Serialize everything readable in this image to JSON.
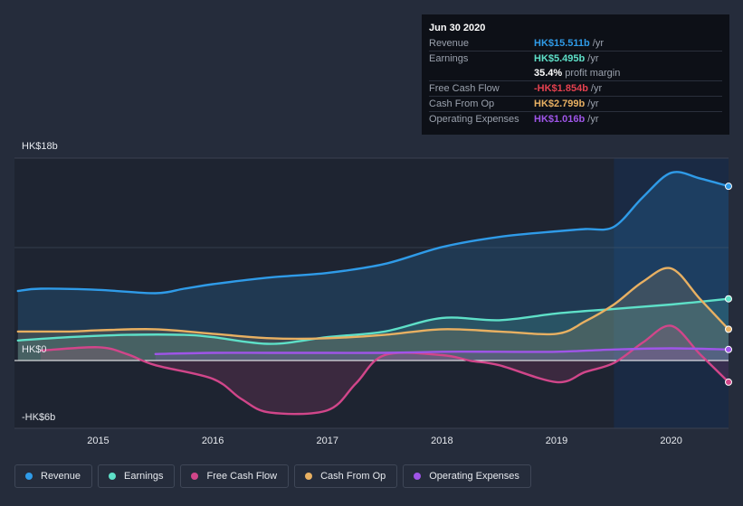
{
  "chart_data": {
    "type": "area",
    "title": "",
    "ylim": [
      -6,
      18
    ],
    "y_tick_labels": {
      "top": "HK$18b",
      "zero": "HK$0",
      "bottom": "-HK$6b"
    },
    "x_ticks": [
      {
        "value": 2015,
        "label": "2015"
      },
      {
        "value": 2016,
        "label": "2016"
      },
      {
        "value": 2017,
        "label": "2017"
      },
      {
        "value": 2018,
        "label": "2018"
      },
      {
        "value": 2019,
        "label": "2019"
      },
      {
        "value": 2020,
        "label": "2020"
      }
    ],
    "xlim": [
      2014.27,
      2020.5
    ],
    "forecast_start": 2019.5,
    "series": [
      {
        "name": "Revenue",
        "color": "#2f9be8",
        "x": [
          2014.3,
          2014.5,
          2015.0,
          2015.5,
          2015.75,
          2016.0,
          2016.5,
          2017.0,
          2017.5,
          2018.0,
          2018.5,
          2019.0,
          2019.25,
          2019.5,
          2019.75,
          2020.0,
          2020.25,
          2020.5
        ],
        "values": [
          6.2,
          6.4,
          6.3,
          6.0,
          6.4,
          6.8,
          7.4,
          7.8,
          8.6,
          10.1,
          11.0,
          11.5,
          11.7,
          11.9,
          14.5,
          16.7,
          16.2,
          15.5
        ]
      },
      {
        "name": "Earnings",
        "color": "#5ee0c8",
        "x": [
          2014.3,
          2014.75,
          2015.25,
          2015.75,
          2016.0,
          2016.5,
          2017.0,
          2017.5,
          2018.0,
          2018.5,
          2019.0,
          2019.5,
          2020.0,
          2020.5
        ],
        "values": [
          1.8,
          2.1,
          2.3,
          2.3,
          2.1,
          1.5,
          2.1,
          2.6,
          3.8,
          3.6,
          4.2,
          4.6,
          5.0,
          5.5
        ]
      },
      {
        "name": "Free Cash Flow",
        "color": "#d1468a",
        "x": [
          2014.5,
          2015.0,
          2015.25,
          2015.5,
          2016.0,
          2016.25,
          2016.5,
          2017.0,
          2017.25,
          2017.5,
          2018.0,
          2018.25,
          2018.5,
          2019.0,
          2019.25,
          2019.5,
          2019.75,
          2020.0,
          2020.25,
          2020.5
        ],
        "values": [
          0.9,
          1.2,
          0.6,
          -0.4,
          -1.6,
          -3.4,
          -4.6,
          -4.4,
          -2.0,
          0.5,
          0.5,
          0.0,
          -0.4,
          -1.9,
          -1.0,
          -0.2,
          1.6,
          3.1,
          0.6,
          -1.9
        ]
      },
      {
        "name": "Cash From Op",
        "color": "#e8b062",
        "x": [
          2014.3,
          2014.75,
          2015.0,
          2015.5,
          2016.0,
          2016.5,
          2017.0,
          2017.5,
          2018.0,
          2018.5,
          2019.0,
          2019.25,
          2019.5,
          2019.75,
          2020.0,
          2020.25,
          2020.5
        ],
        "values": [
          2.6,
          2.6,
          2.7,
          2.8,
          2.4,
          2.0,
          2.0,
          2.3,
          2.8,
          2.6,
          2.4,
          3.5,
          5.0,
          7.0,
          8.2,
          5.5,
          2.8
        ]
      },
      {
        "name": "Operating Expenses",
        "color": "#9f55e8",
        "x": [
          2015.5,
          2016.0,
          2016.5,
          2017.0,
          2017.5,
          2018.0,
          2018.5,
          2019.0,
          2019.5,
          2020.0,
          2020.5
        ],
        "values": [
          0.6,
          0.7,
          0.7,
          0.7,
          0.7,
          0.8,
          0.8,
          0.8,
          1.0,
          1.1,
          1.0
        ]
      }
    ]
  },
  "tooltip": {
    "date": "Jun 30 2020",
    "rows": [
      {
        "label": "Revenue",
        "value": "HK$15.511b",
        "unit": "/yr",
        "color": "#2f9be8"
      },
      {
        "label": "Earnings",
        "value": "HK$5.495b",
        "unit": "/yr",
        "color": "#5ee0c8"
      },
      {
        "label": "",
        "value": "35.4%",
        "unit": "profit margin",
        "color": "#ffffff"
      },
      {
        "label": "Free Cash Flow",
        "value": "-HK$1.854b",
        "unit": "/yr",
        "color": "#e5414f"
      },
      {
        "label": "Cash From Op",
        "value": "HK$2.799b",
        "unit": "/yr",
        "color": "#e8b062"
      },
      {
        "label": "Operating Expenses",
        "value": "HK$1.016b",
        "unit": "/yr",
        "color": "#9f55e8"
      }
    ]
  },
  "legend": [
    {
      "label": "Revenue",
      "color": "#2f9be8"
    },
    {
      "label": "Earnings",
      "color": "#5ee0c8"
    },
    {
      "label": "Free Cash Flow",
      "color": "#d1468a"
    },
    {
      "label": "Cash From Op",
      "color": "#e8b062"
    },
    {
      "label": "Operating Expenses",
      "color": "#9f55e8"
    }
  ]
}
